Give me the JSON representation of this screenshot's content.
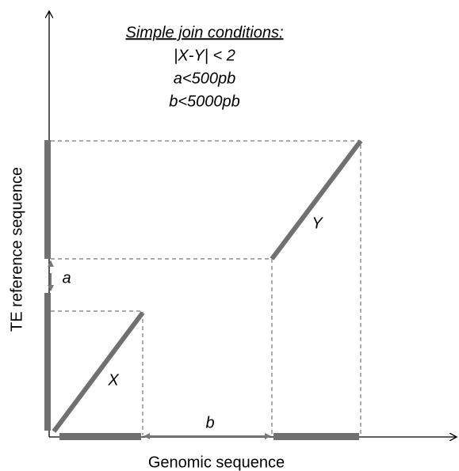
{
  "title": "Simple join conditions:",
  "conditions": [
    "|X-Y| < 2",
    "a<500pb",
    "b<5000pb"
  ],
  "axes": {
    "x_label": "Genomic sequence",
    "y_label": "TE reference  sequence"
  },
  "labels": {
    "a": "a",
    "b": "b",
    "X": "X",
    "Y": "Y"
  }
}
